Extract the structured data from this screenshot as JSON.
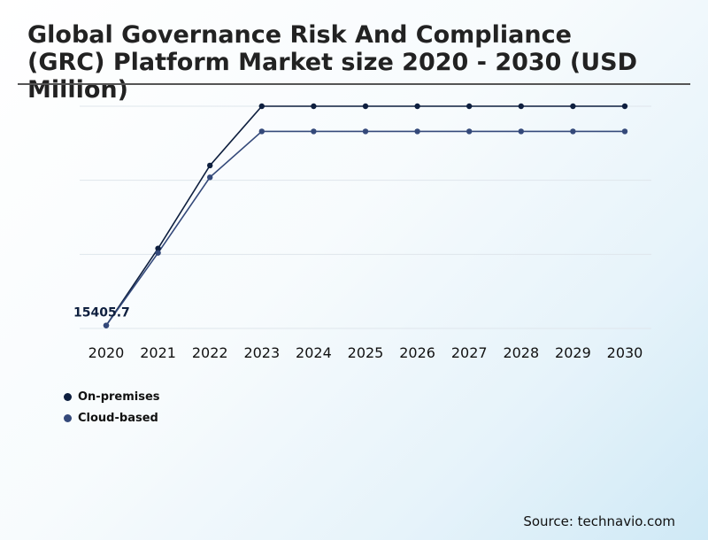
{
  "chart_data": {
    "type": "line",
    "title": "Global Governance Risk And Compliance (GRC) Platform Market size 2020 - 2030 (USD Million)",
    "categories": [
      "2020",
      "2021",
      "2022",
      "2023",
      "2024",
      "2025",
      "2026",
      "2027",
      "2028",
      "2029",
      "2030"
    ],
    "series": [
      {
        "name": "On-premises",
        "color": "#0e1f3f",
        "values": [
          15405.7,
          15410.9,
          15416.5,
          15420.5,
          15420.5,
          15420.5,
          15420.5,
          15420.5,
          15420.5,
          15420.5,
          15420.5
        ]
      },
      {
        "name": "Cloud-based",
        "color": "#34497a",
        "values": [
          15405.7,
          15410.6,
          15415.7,
          15418.8,
          15418.8,
          15418.8,
          15418.8,
          15418.8,
          15418.8,
          15418.8,
          15418.8
        ]
      }
    ],
    "data_labels": [
      {
        "series": 0,
        "index": 0,
        "text": "15405.7"
      }
    ],
    "ylim": [
      15405.5,
      15420.5
    ],
    "grid": true,
    "legend_position": "bottom-left",
    "source": "Source: technavio.com"
  }
}
